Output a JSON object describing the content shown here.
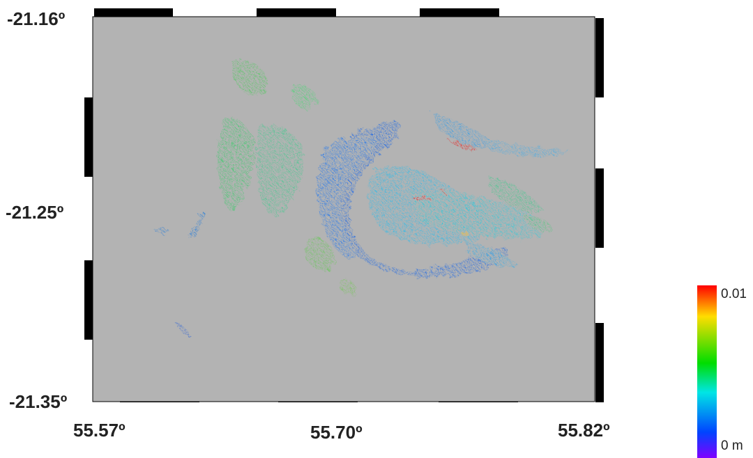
{
  "map": {
    "type": "deformation raster",
    "background_color": "#b3b3b3",
    "lat_ticks": [
      "-21.16º",
      "-21.25º",
      "-21.35º"
    ],
    "lon_ticks": [
      "55.57º",
      "55.70º",
      "55.82º"
    ]
  },
  "colorbar": {
    "max_label": "0.01",
    "min_label": "0 m",
    "colors": [
      "#ff0000",
      "#ffdd00",
      "#00dd00",
      "#00e5e5",
      "#0044ff",
      "#8000ff"
    ]
  }
}
